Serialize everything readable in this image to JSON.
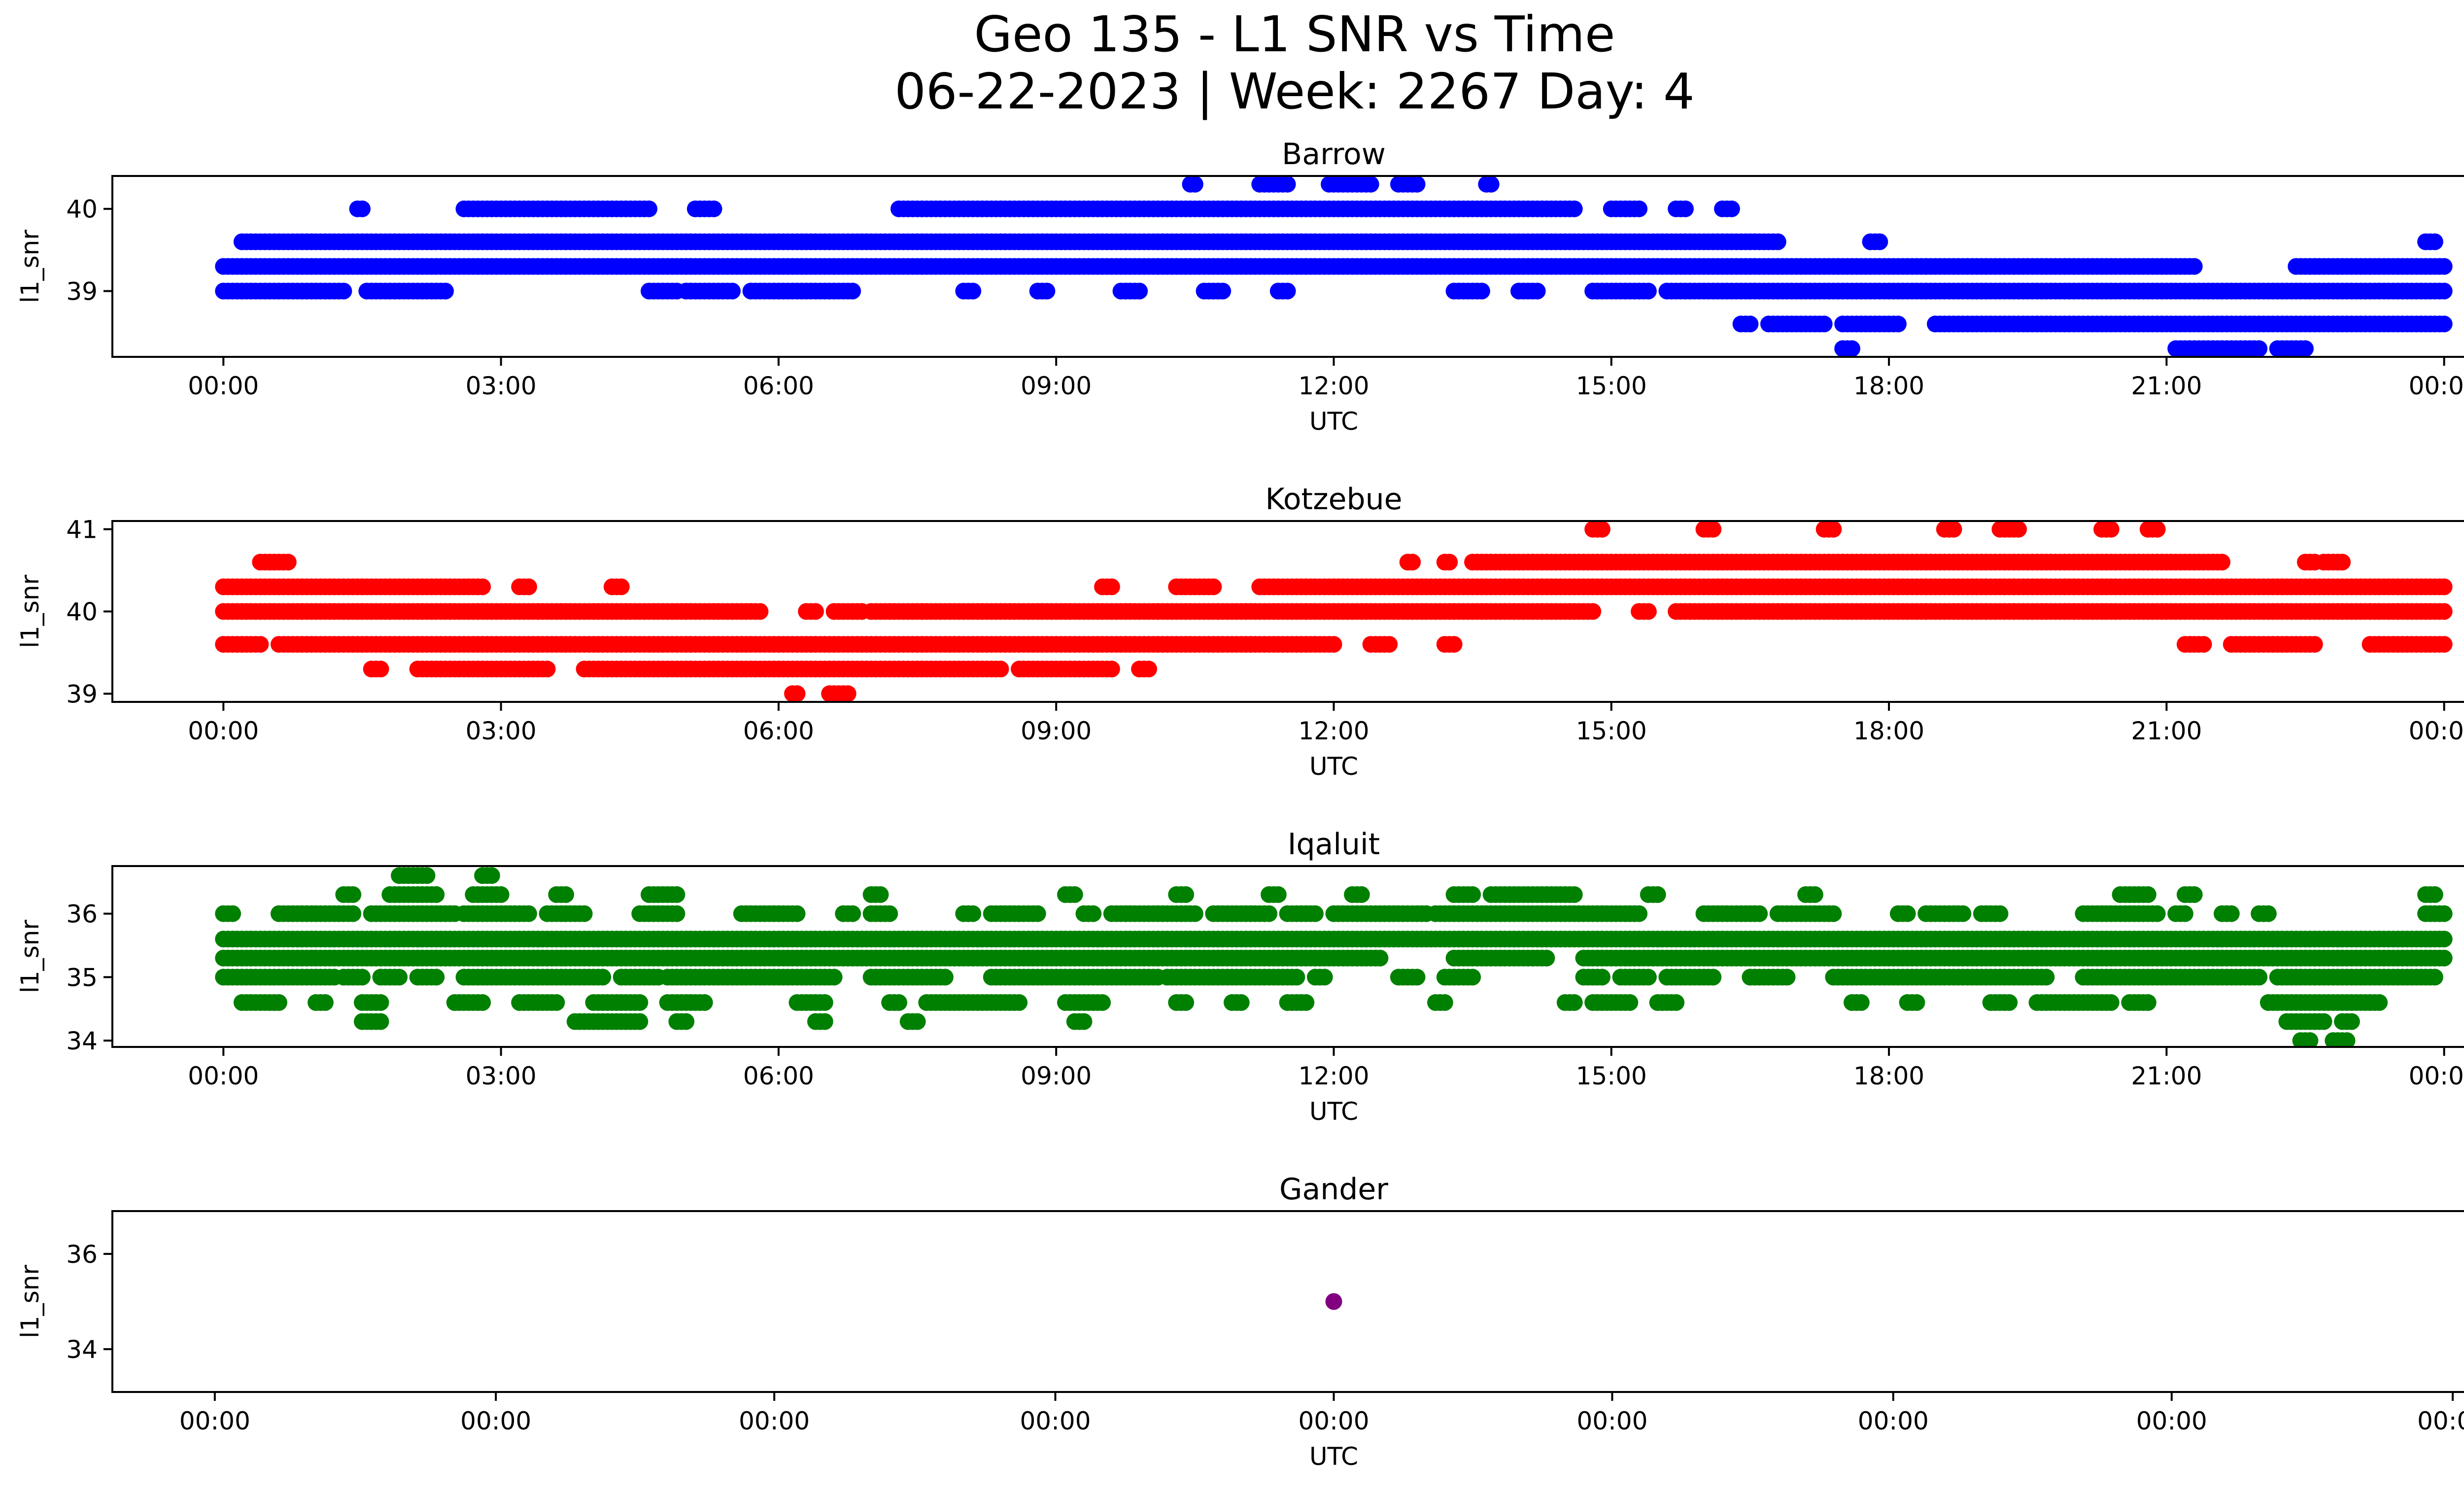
{
  "figure": {
    "title_line1": "Geo 135 - L1 SNR vs Time",
    "title_line2": "06-22-2023 | Week: 2267 Day: 4"
  },
  "chart_data": [
    {
      "type": "scatter",
      "title": "Barrow",
      "xlabel": "UTC",
      "ylabel": "l1_snr",
      "color": "#0000ff",
      "x_tick_labels": [
        "00:00",
        "03:00",
        "06:00",
        "09:00",
        "12:00",
        "15:00",
        "18:00",
        "21:00",
        "00:00"
      ],
      "x_ticks_hours": [
        0,
        3,
        6,
        9,
        12,
        15,
        18,
        21,
        24
      ],
      "xlim_hours": [
        -1.2,
        25.2
      ],
      "y_ticks": [
        39,
        40
      ],
      "ylim": [
        38.2,
        40.4
      ],
      "levels": [
        {
          "y": 40.3,
          "segments": [
            [
              10.45,
              10.5
            ],
            [
              11.2,
              11.5
            ],
            [
              11.95,
              12.4
            ],
            [
              12.7,
              12.9
            ],
            [
              13.65,
              13.7
            ]
          ]
        },
        {
          "y": 40.0,
          "segments": [
            [
              1.45,
              1.5
            ],
            [
              2.6,
              4.6
            ],
            [
              5.1,
              5.3
            ],
            [
              7.3,
              14.6
            ],
            [
              15.0,
              15.3
            ],
            [
              15.7,
              15.8
            ],
            [
              16.2,
              16.3
            ]
          ]
        },
        {
          "y": 39.6,
          "segments": [
            [
              0.2,
              16.8
            ],
            [
              17.8,
              17.9
            ],
            [
              23.8,
              23.9
            ]
          ]
        },
        {
          "y": 39.3,
          "segments": [
            [
              0,
              21.3
            ],
            [
              22.4,
              24
            ]
          ]
        },
        {
          "y": 39.0,
          "segments": [
            [
              0,
              1.3
            ],
            [
              1.55,
              2.4
            ],
            [
              4.6,
              4.9
            ],
            [
              5.0,
              5.5
            ],
            [
              5.7,
              6.8
            ],
            [
              8.0,
              8.1
            ],
            [
              8.8,
              8.9
            ],
            [
              9.7,
              9.9
            ],
            [
              10.6,
              10.8
            ],
            [
              11.4,
              11.5
            ],
            [
              13.3,
              13.6
            ],
            [
              14.0,
              14.2
            ],
            [
              14.8,
              15.4
            ],
            [
              15.6,
              24
            ]
          ]
        },
        {
          "y": 38.6,
          "segments": [
            [
              16.4,
              16.5
            ],
            [
              16.7,
              17.3
            ],
            [
              17.5,
              18.1
            ],
            [
              18.5,
              24
            ]
          ]
        },
        {
          "y": 38.3,
          "segments": [
            [
              17.5,
              17.6
            ],
            [
              21.1,
              22.0
            ],
            [
              22.2,
              22.5
            ]
          ]
        }
      ]
    },
    {
      "type": "scatter",
      "title": "Kotzebue",
      "xlabel": "UTC",
      "ylabel": "l1_snr",
      "color": "#ff0000",
      "x_tick_labels": [
        "00:00",
        "03:00",
        "06:00",
        "09:00",
        "12:00",
        "15:00",
        "18:00",
        "21:00",
        "00:00"
      ],
      "x_ticks_hours": [
        0,
        3,
        6,
        9,
        12,
        15,
        18,
        21,
        24
      ],
      "xlim_hours": [
        -1.2,
        25.2
      ],
      "y_ticks": [
        39,
        40,
        41
      ],
      "ylim": [
        38.9,
        41.1
      ],
      "levels": [
        {
          "y": 41.0,
          "segments": [
            [
              14.8,
              14.9
            ],
            [
              16.0,
              16.1
            ],
            [
              17.3,
              17.4
            ],
            [
              18.6,
              18.7
            ],
            [
              19.2,
              19.4
            ],
            [
              20.3,
              20.4
            ],
            [
              20.8,
              20.9
            ]
          ]
        },
        {
          "y": 40.6,
          "segments": [
            [
              0.4,
              0.7
            ],
            [
              12.8,
              12.85
            ],
            [
              13.2,
              13.25
            ],
            [
              13.5,
              21.6
            ],
            [
              22.5,
              22.6
            ],
            [
              22.7,
              22.9
            ]
          ]
        },
        {
          "y": 40.3,
          "segments": [
            [
              0,
              2.8
            ],
            [
              3.2,
              3.3
            ],
            [
              4.2,
              4.3
            ],
            [
              9.5,
              9.6
            ],
            [
              10.3,
              10.7
            ],
            [
              11.2,
              24
            ]
          ]
        },
        {
          "y": 40.0,
          "segments": [
            [
              0,
              5.8
            ],
            [
              6.3,
              6.4
            ],
            [
              6.6,
              6.9
            ],
            [
              7.0,
              14.8
            ],
            [
              15.3,
              15.4
            ],
            [
              15.7,
              24
            ]
          ]
        },
        {
          "y": 39.6,
          "segments": [
            [
              0,
              0.4
            ],
            [
              0.6,
              12.0
            ],
            [
              12.4,
              12.6
            ],
            [
              13.2,
              13.3
            ],
            [
              21.2,
              21.4
            ],
            [
              21.7,
              22.6
            ],
            [
              23.2,
              24
            ]
          ]
        },
        {
          "y": 39.3,
          "segments": [
            [
              1.6,
              1.7
            ],
            [
              2.1,
              3.5
            ],
            [
              3.9,
              8.4
            ],
            [
              8.6,
              9.6
            ],
            [
              9.9,
              10.0
            ]
          ]
        },
        {
          "y": 39.0,
          "segments": [
            [
              6.15,
              6.2
            ],
            [
              6.55,
              6.75
            ]
          ]
        }
      ]
    },
    {
      "type": "scatter",
      "title": "Iqaluit",
      "xlabel": "UTC",
      "ylabel": "l1_snr",
      "color": "#008000",
      "x_tick_labels": [
        "00:00",
        "03:00",
        "06:00",
        "09:00",
        "12:00",
        "15:00",
        "18:00",
        "21:00",
        "00:00"
      ],
      "x_ticks_hours": [
        0,
        3,
        6,
        9,
        12,
        15,
        18,
        21,
        24
      ],
      "xlim_hours": [
        -1.2,
        25.2
      ],
      "y_ticks": [
        34,
        35,
        36
      ],
      "ylim": [
        33.9,
        36.75
      ],
      "levels": [
        {
          "y": 36.6,
          "segments": [
            [
              1.9,
              2.2
            ],
            [
              2.8,
              2.9
            ]
          ]
        },
        {
          "y": 36.3,
          "segments": [
            [
              1.3,
              1.4
            ],
            [
              1.8,
              2.3
            ],
            [
              2.7,
              3.0
            ],
            [
              3.6,
              3.7
            ],
            [
              4.6,
              4.9
            ],
            [
              7.0,
              7.1
            ],
            [
              9.1,
              9.2
            ],
            [
              10.3,
              10.4
            ],
            [
              11.3,
              11.4
            ],
            [
              12.2,
              12.3
            ],
            [
              13.3,
              13.5
            ],
            [
              13.7,
              14.6
            ],
            [
              15.4,
              15.5
            ],
            [
              17.1,
              17.2
            ],
            [
              20.5,
              20.8
            ],
            [
              21.2,
              21.3
            ],
            [
              23.8,
              23.9
            ]
          ]
        },
        {
          "y": 36.0,
          "segments": [
            [
              0,
              0.1
            ],
            [
              0.6,
              1.4
            ],
            [
              1.6,
              2.5
            ],
            [
              2.6,
              3.3
            ],
            [
              3.5,
              3.9
            ],
            [
              4.5,
              4.9
            ],
            [
              5.6,
              6.2
            ],
            [
              6.7,
              6.8
            ],
            [
              7.0,
              7.2
            ],
            [
              8.0,
              8.1
            ],
            [
              8.3,
              8.8
            ],
            [
              9.3,
              9.4
            ],
            [
              9.6,
              10.5
            ],
            [
              10.7,
              11.3
            ],
            [
              11.5,
              11.8
            ],
            [
              12.0,
              13.0
            ],
            [
              13.1,
              15.3
            ],
            [
              16.0,
              16.6
            ],
            [
              16.8,
              17.4
            ],
            [
              18.1,
              18.2
            ],
            [
              18.4,
              18.8
            ],
            [
              19.0,
              19.2
            ],
            [
              20.1,
              20.9
            ],
            [
              21.1,
              21.2
            ],
            [
              21.6,
              21.7
            ],
            [
              22.0,
              22.1
            ],
            [
              23.8,
              24.0
            ]
          ]
        },
        {
          "y": 35.6,
          "segments": [
            [
              0,
              24
            ]
          ]
        },
        {
          "y": 35.3,
          "segments": [
            [
              0,
              12.5
            ],
            [
              13.3,
              14.3
            ],
            [
              14.7,
              24
            ]
          ]
        },
        {
          "y": 35.0,
          "segments": [
            [
              0,
              1.2
            ],
            [
              1.3,
              1.5
            ],
            [
              1.7,
              1.9
            ],
            [
              2.1,
              2.3
            ],
            [
              2.6,
              4.1
            ],
            [
              4.3,
              4.7
            ],
            [
              4.8,
              6.6
            ],
            [
              7.0,
              7.8
            ],
            [
              8.3,
              10.1
            ],
            [
              10.2,
              11.6
            ],
            [
              11.8,
              11.9
            ],
            [
              12.7,
              12.9
            ],
            [
              13.2,
              13.5
            ],
            [
              14.7,
              14.9
            ],
            [
              15.1,
              15.4
            ],
            [
              15.6,
              16.1
            ],
            [
              16.5,
              16.9
            ],
            [
              17.4,
              19.7
            ],
            [
              20.1,
              22.0
            ],
            [
              22.2,
              23.9
            ]
          ]
        },
        {
          "y": 34.6,
          "segments": [
            [
              0.2,
              0.6
            ],
            [
              1.0,
              1.1
            ],
            [
              1.5,
              1.7
            ],
            [
              2.5,
              2.8
            ],
            [
              3.2,
              3.6
            ],
            [
              4.0,
              4.5
            ],
            [
              4.8,
              5.2
            ],
            [
              6.2,
              6.5
            ],
            [
              7.2,
              7.3
            ],
            [
              7.6,
              8.6
            ],
            [
              9.1,
              9.5
            ],
            [
              10.3,
              10.4
            ],
            [
              10.9,
              11.0
            ],
            [
              11.5,
              11.7
            ],
            [
              13.1,
              13.2
            ],
            [
              14.5,
              14.6
            ],
            [
              14.8,
              15.2
            ],
            [
              15.5,
              15.7
            ],
            [
              17.6,
              17.7
            ],
            [
              18.2,
              18.3
            ],
            [
              19.1,
              19.3
            ],
            [
              19.6,
              20.4
            ],
            [
              20.6,
              20.8
            ],
            [
              22.1,
              23.3
            ]
          ]
        },
        {
          "y": 34.3,
          "segments": [
            [
              1.5,
              1.7
            ],
            [
              3.8,
              4.5
            ],
            [
              4.9,
              5.0
            ],
            [
              6.4,
              6.5
            ],
            [
              7.4,
              7.5
            ],
            [
              9.2,
              9.3
            ],
            [
              22.3,
              22.7
            ],
            [
              22.9,
              23.0
            ]
          ]
        },
        {
          "y": 34.0,
          "segments": [
            [
              22.45,
              22.55
            ],
            [
              22.8,
              22.95
            ]
          ]
        }
      ]
    },
    {
      "type": "scatter",
      "title": "Gander",
      "xlabel": "UTC",
      "ylabel": "l1_snr",
      "color": "#800080",
      "x_tick_labels": [
        "00:00",
        "00:00",
        "00:00",
        "00:00",
        "00:00",
        "00:00",
        "00:00",
        "00:00",
        "00:00"
      ],
      "x_ticks_rel": [
        -0.0426,
        -0.0319,
        -0.0213,
        -0.0106,
        0.0,
        0.0106,
        0.0213,
        0.0319,
        0.0426
      ],
      "xlim_rel": [
        -0.0465,
        0.0465
      ],
      "y_ticks": [
        34,
        36
      ],
      "ylim": [
        33.1,
        36.9
      ],
      "points": [
        {
          "x_rel": 0.0,
          "y": 35.0
        }
      ]
    }
  ]
}
